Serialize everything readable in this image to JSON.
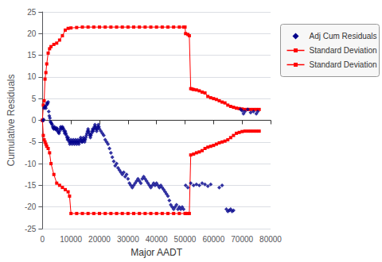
{
  "chart_data": {
    "type": "line",
    "xlabel": "Major AADT",
    "ylabel": "Cumulative Residuals",
    "xlim": [
      0,
      80000
    ],
    "ylim": [
      -25,
      25
    ],
    "xticks": [
      0,
      10000,
      20000,
      30000,
      40000,
      50000,
      60000,
      70000,
      80000
    ],
    "yticks": [
      -25,
      -20,
      -15,
      -10,
      -5,
      0,
      5,
      10,
      15,
      20,
      25
    ],
    "grid": "y",
    "legend": "right",
    "series": [
      {
        "name": "Adj Cum Residuals",
        "type": "scatter",
        "color": "#00008B",
        "marker": "diamond",
        "x": [
          200,
          400,
          600,
          800,
          1000,
          1200,
          1400,
          1600,
          1800,
          2000,
          2200,
          2400,
          2600,
          2800,
          3000,
          3200,
          3400,
          3600,
          3800,
          4000,
          4200,
          4400,
          4600,
          4800,
          5000,
          5200,
          5400,
          5600,
          5800,
          6000,
          6200,
          6400,
          6600,
          6800,
          7000,
          7200,
          7400,
          7600,
          7800,
          8000,
          8200,
          8400,
          8600,
          8800,
          9000,
          9200,
          9400,
          9600,
          9800,
          10000,
          10200,
          10400,
          10600,
          10800,
          11000,
          11200,
          11400,
          11600,
          11800,
          12000,
          12200,
          12400,
          12600,
          12800,
          13000,
          13200,
          13400,
          13600,
          13800,
          14000,
          14200,
          14400,
          14600,
          14800,
          15000,
          15200,
          15400,
          15600,
          15800,
          16000,
          16200,
          16400,
          16600,
          16800,
          17000,
          17200,
          17400,
          17600,
          17800,
          18000,
          18200,
          18400,
          18600,
          18800,
          19000,
          19200,
          19400,
          19600,
          19800,
          20000,
          20500,
          21000,
          21500,
          22000,
          22500,
          23000,
          23500,
          24000,
          24500,
          25000,
          25500,
          26000,
          26500,
          27000,
          27500,
          28000,
          28500,
          29000,
          29500,
          30000,
          30500,
          31000,
          31500,
          32000,
          32500,
          33000,
          33500,
          34000,
          34500,
          35000,
          35500,
          36000,
          36500,
          37000,
          37500,
          38000,
          38500,
          39000,
          39500,
          40000,
          40500,
          41000,
          41500,
          42000,
          42500,
          43000,
          43500,
          44000,
          44500,
          45000,
          45500,
          46000,
          46500,
          47000,
          47500,
          48000,
          48500,
          49000,
          49500,
          50200,
          51000,
          52000,
          53000,
          54000,
          55000,
          56000,
          57000,
          58000,
          59000,
          62000,
          63000,
          64500,
          65000,
          65500,
          66000,
          66500,
          67000,
          69500,
          70000,
          70500,
          71000,
          72000,
          73000,
          74000,
          75000,
          75500
        ],
        "values": [
          -0.1,
          0.2,
          2.8,
          3.0,
          3.2,
          2.8,
          3.5,
          4.0,
          3.8,
          4.2,
          2.0,
          1.0,
          0.5,
          -0.3,
          -0.5,
          -0.8,
          -1.0,
          -1.5,
          -1.8,
          -2.0,
          -1.5,
          -1.8,
          -2.0,
          -2.2,
          -1.8,
          -2.0,
          -2.5,
          -2.8,
          -3.0,
          -2.5,
          -2.0,
          -1.5,
          -1.8,
          -2.0,
          -1.5,
          -1.8,
          -2.0,
          -2.5,
          -3.0,
          -2.5,
          -3.0,
          -3.5,
          -4.0,
          -4.5,
          -4.0,
          -4.5,
          -5.0,
          -5.5,
          -5.0,
          -4.5,
          -5.0,
          -5.5,
          -5.0,
          -4.5,
          -5.0,
          -5.5,
          -5.0,
          -4.5,
          -5.0,
          -5.5,
          -5.0,
          -4.5,
          -5.0,
          -5.5,
          -5.0,
          -4.5,
          -4.0,
          -4.5,
          -5.0,
          -5.0,
          -4.5,
          -4.0,
          -4.5,
          -5.0,
          -4.5,
          -4.0,
          -3.5,
          -3.0,
          -2.5,
          -2.0,
          -2.5,
          -3.0,
          -3.5,
          -4.0,
          -3.5,
          -3.0,
          -2.5,
          -2.0,
          -2.5,
          -2.0,
          -1.5,
          -1.0,
          -1.5,
          -2.0,
          -2.5,
          -2.0,
          -1.5,
          -1.0,
          -1.5,
          -2.0,
          -2.5,
          -3.0,
          -3.5,
          -4.5,
          -5.0,
          -5.5,
          -6.5,
          -7.5,
          -8.5,
          -9.5,
          -10.5,
          -10.0,
          -11.0,
          -11.5,
          -12.0,
          -12.5,
          -12.0,
          -13.0,
          -12.5,
          -13.5,
          -14.5,
          -15.0,
          -15.5,
          -15.0,
          -14.5,
          -14.0,
          -13.5,
          -14.0,
          -14.5,
          -13.5,
          -13.0,
          -13.5,
          -14.0,
          -14.5,
          -15.0,
          -15.5,
          -15.0,
          -14.5,
          -15.0,
          -14.5,
          -15.0,
          -15.5,
          -15.0,
          -15.5,
          -16.0,
          -16.5,
          -17.0,
          -17.5,
          -18.5,
          -19.5,
          -20.0,
          -20.5,
          -20.0,
          -19.5,
          -20.5,
          -20.0,
          -20.5,
          -20.0,
          -20.5,
          -15.0,
          -15.5,
          -14.5,
          -15.0,
          -14.8,
          -15.0,
          -14.5,
          -14.8,
          -15.2,
          -14.8,
          -15.5,
          -15.0,
          -20.5,
          -21.0,
          -20.8,
          -20.5,
          -21.0,
          -20.8,
          2.5,
          2.2,
          1.5,
          2.0,
          2.5,
          1.8,
          2.0,
          1.5,
          2.0
        ]
      },
      {
        "name": "Standard Deviation",
        "type": "line",
        "color": "#ff0000",
        "marker": "square",
        "line_style": "solid",
        "x": [
          0,
          300,
          600,
          900,
          1200,
          1500,
          2000,
          2500,
          3000,
          4000,
          5000,
          6000,
          7000,
          8000,
          9000,
          10000,
          12000,
          14000,
          16000,
          18000,
          20000,
          22000,
          24000,
          26000,
          28000,
          30000,
          32000,
          34000,
          36000,
          38000,
          40000,
          42000,
          44000,
          46000,
          48000,
          49500,
          50000,
          50200,
          51000,
          51500,
          52000,
          52500,
          53000,
          54000,
          55000,
          56000,
          57000,
          58000,
          59000,
          60000,
          61000,
          62000,
          63000,
          64000,
          65000,
          66000,
          67000,
          68000,
          69000,
          70000,
          71000,
          72000,
          73000,
          74000,
          75000,
          76000
        ],
        "values": [
          0,
          3.5,
          4.5,
          9.5,
          11.0,
          13.0,
          15.5,
          16.5,
          17.0,
          17.5,
          17.8,
          18.5,
          19.5,
          20.8,
          21.2,
          21.3,
          21.4,
          21.5,
          21.5,
          21.5,
          21.5,
          21.5,
          21.5,
          21.5,
          21.5,
          21.5,
          21.5,
          21.5,
          21.5,
          21.5,
          21.5,
          21.5,
          21.5,
          21.5,
          21.5,
          21.5,
          21.5,
          20.0,
          19.8,
          19.5,
          7.3,
          7.2,
          7.1,
          7.0,
          6.8,
          6.5,
          6.3,
          5.5,
          5.2,
          5.0,
          4.8,
          4.5,
          4.2,
          4.0,
          3.5,
          3.2,
          3.0,
          2.8,
          2.7,
          2.6,
          2.5,
          2.5,
          2.5,
          2.5,
          2.5,
          2.5
        ]
      },
      {
        "name": "Standard Deviation",
        "type": "line",
        "color": "#ff0000",
        "marker": "square",
        "line_style": "solid",
        "x": [
          0,
          300,
          600,
          900,
          1200,
          1500,
          2000,
          2500,
          3000,
          4000,
          5000,
          6000,
          7000,
          8000,
          9000,
          9500,
          10000,
          12000,
          14000,
          16000,
          18000,
          20000,
          22000,
          24000,
          26000,
          28000,
          30000,
          32000,
          34000,
          36000,
          38000,
          40000,
          42000,
          44000,
          46000,
          48000,
          50000,
          50200,
          51000,
          51500,
          52000,
          53000,
          54000,
          55000,
          56000,
          57000,
          58000,
          59000,
          60000,
          61000,
          62000,
          63000,
          64000,
          65000,
          66000,
          67000,
          68000,
          69000,
          70000,
          71000,
          72000,
          73000,
          74000,
          75000,
          76000
        ],
        "values": [
          0,
          -3.5,
          -4.5,
          -5.0,
          -5.5,
          -6.0,
          -6.5,
          -7.5,
          -10.0,
          -12.5,
          -14.5,
          -15.0,
          -15.5,
          -16.0,
          -16.5,
          -17.5,
          -21.5,
          -21.5,
          -21.5,
          -21.5,
          -21.5,
          -21.5,
          -21.5,
          -21.5,
          -21.5,
          -21.5,
          -21.5,
          -21.5,
          -21.5,
          -21.5,
          -21.5,
          -21.5,
          -21.5,
          -21.5,
          -21.5,
          -21.5,
          -21.5,
          -21.5,
          -21.5,
          -21.5,
          -8.0,
          -7.8,
          -7.5,
          -7.3,
          -7.0,
          -6.5,
          -6.2,
          -6.0,
          -5.8,
          -5.5,
          -5.2,
          -5.0,
          -4.8,
          -4.5,
          -4.0,
          -3.5,
          -3.0,
          -2.8,
          -2.6,
          -2.5,
          -2.5,
          -2.5,
          -2.5,
          -2.5,
          -2.5
        ]
      }
    ]
  }
}
